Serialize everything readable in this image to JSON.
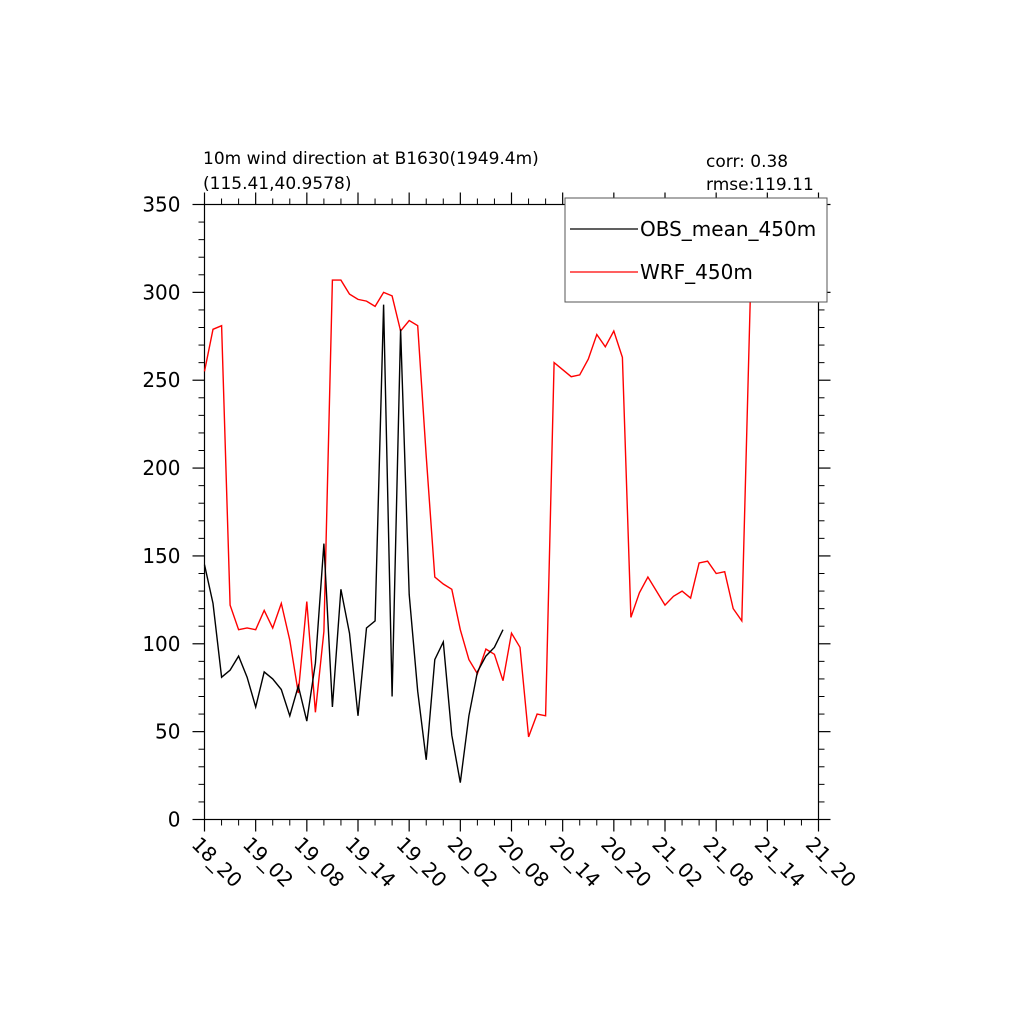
{
  "chart_data": {
    "type": "line",
    "title_lines": [
      "10m wind direction at B1630(1949.4m)",
      "(115.41,40.9578)"
    ],
    "stats_lines": [
      "corr:  0.38",
      "rmse:119.11"
    ],
    "xlabel": "",
    "ylabel": "",
    "ylim": [
      0,
      350
    ],
    "xlim": [
      0,
      72
    ],
    "y_ticks": [
      0,
      50,
      100,
      150,
      200,
      250,
      300,
      350
    ],
    "x_ticks": [
      {
        "x": 0,
        "label": "18_20"
      },
      {
        "x": 6,
        "label": "19_02"
      },
      {
        "x": 12,
        "label": "19_08"
      },
      {
        "x": 18,
        "label": "19_14"
      },
      {
        "x": 24,
        "label": "19_20"
      },
      {
        "x": 30,
        "label": "20_02"
      },
      {
        "x": 36,
        "label": "20_08"
      },
      {
        "x": 42,
        "label": "20_14"
      },
      {
        "x": 48,
        "label": "20_20"
      },
      {
        "x": 54,
        "label": "21_02"
      },
      {
        "x": 60,
        "label": "21_08"
      },
      {
        "x": 66,
        "label": "21_14"
      },
      {
        "x": 72,
        "label": "21_20"
      }
    ],
    "grid": false,
    "legend_position": "top-right",
    "series": [
      {
        "name": "OBS_mean_450m",
        "color": "#000000",
        "x": [
          0,
          1,
          2,
          3,
          4,
          5,
          6,
          7,
          8,
          9,
          10,
          11,
          12,
          13,
          14,
          15,
          16,
          17,
          18,
          19,
          20,
          21,
          22,
          23,
          24,
          25,
          26,
          27,
          28,
          29,
          30,
          31,
          32,
          33,
          34,
          35
        ],
        "values": [
          145,
          123,
          81,
          85,
          93,
          81,
          64,
          84,
          80,
          74,
          59,
          76,
          56,
          89,
          157,
          64,
          131,
          106,
          59,
          109,
          113,
          293,
          70,
          279,
          128,
          73,
          34,
          91,
          101,
          48,
          21,
          59,
          84,
          93,
          98,
          108
        ]
      },
      {
        "name": "WRF_450m",
        "color": "#ff0000",
        "x": [
          0,
          1,
          2,
          3,
          4,
          5,
          6,
          7,
          8,
          9,
          10,
          11,
          12,
          13,
          14,
          15,
          16,
          17,
          18,
          19,
          20,
          21,
          22,
          23,
          24,
          25,
          26,
          27,
          28,
          29,
          30,
          31,
          32,
          33,
          34,
          35,
          36,
          37,
          38,
          39,
          40,
          41,
          42,
          43,
          44,
          45,
          46,
          47,
          48,
          49,
          50,
          51,
          52,
          53,
          54,
          55,
          56,
          57,
          58,
          59,
          60,
          61,
          62,
          63,
          64,
          65,
          66,
          67,
          68,
          69,
          70,
          71,
          72
        ],
        "values": [
          255,
          279,
          281,
          122,
          108,
          109,
          108,
          119,
          109,
          123,
          102,
          72,
          124,
          61,
          107,
          307,
          307,
          299,
          296,
          295,
          292,
          300,
          298,
          278,
          284,
          281,
          207,
          138,
          134,
          131,
          108,
          91,
          83,
          97,
          94,
          79,
          106,
          98,
          47,
          60,
          59,
          260,
          256,
          252,
          253,
          262,
          276,
          269,
          278,
          263,
          115,
          129,
          138,
          130,
          122,
          127,
          130,
          126,
          146,
          147,
          140,
          141,
          120,
          113,
          297,
          296,
          295,
          296,
          296,
          310,
          312,
          341,
          348
        ]
      }
    ]
  }
}
